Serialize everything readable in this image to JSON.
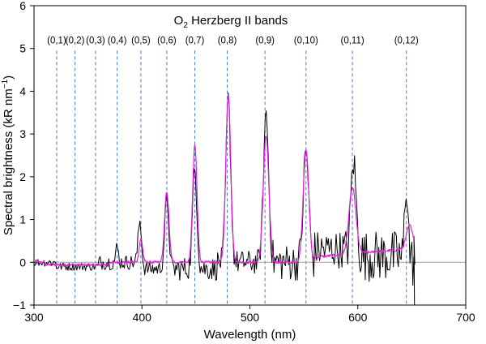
{
  "chart_data": {
    "type": "line",
    "title": "O",
    "title_sub": "2",
    "title_rest": " Herzberg II bands",
    "xlabel": "Wavelength (nm)",
    "ylabel": "Spectral brightness (kR nm",
    "ylabel_sup": "−1",
    "ylabel_close": ")",
    "xlim": [
      300,
      700
    ],
    "ylim": [
      -1,
      6
    ],
    "xticks": [
      "300",
      "400",
      "500",
      "600",
      "700"
    ],
    "yticks": [
      "−1",
      "0",
      "1",
      "2",
      "3",
      "4",
      "5",
      "6"
    ],
    "colors": {
      "observed": "#000000",
      "model": "#e020e0",
      "band_marker": "#4a7bd0",
      "zero_line": "#a0a0a0"
    },
    "bands": [
      {
        "label": "(0,1)",
        "x": 321
      },
      {
        "label": "(0,2)",
        "x": 338
      },
      {
        "label": "(0,3)",
        "x": 357
      },
      {
        "label": "(0,4)",
        "x": 377
      },
      {
        "label": "(0,5)",
        "x": 399
      },
      {
        "label": "(0,6)",
        "x": 423
      },
      {
        "label": "(0,7)",
        "x": 449
      },
      {
        "label": "(0,8)",
        "x": 479
      },
      {
        "label": "(0,9)",
        "x": 514
      },
      {
        "label": "(0,10)",
        "x": 552
      },
      {
        "label": "(0,11)",
        "x": 595
      },
      {
        "label": "(0,12)",
        "x": 645
      }
    ],
    "model_peaks": [
      {
        "x": 399,
        "h": 0.55,
        "w": 1.6
      },
      {
        "x": 423,
        "h": 1.65,
        "w": 2.0
      },
      {
        "x": 449,
        "h": 2.75,
        "w": 2.0
      },
      {
        "x": 480,
        "h": 3.9,
        "w": 2.3
      },
      {
        "x": 515,
        "h": 2.95,
        "w": 2.6
      },
      {
        "x": 552,
        "h": 2.65,
        "w": 2.6
      },
      {
        "x": 595,
        "h": 1.55,
        "w": 3.2
      },
      {
        "x": 648,
        "h": 0.55,
        "w": 3.0
      }
    ],
    "observed_peaks": [
      {
        "x": 377,
        "h": 0.35,
        "w": 1.2
      },
      {
        "x": 398,
        "h": 0.95,
        "w": 1.6
      },
      {
        "x": 423,
        "h": 1.6,
        "w": 1.9
      },
      {
        "x": 449,
        "h": 2.35,
        "w": 2.0
      },
      {
        "x": 480,
        "h": 3.8,
        "w": 2.2
      },
      {
        "x": 515,
        "h": 3.5,
        "w": 2.4
      },
      {
        "x": 552,
        "h": 2.6,
        "w": 2.5
      },
      {
        "x": 596,
        "h": 2.35,
        "w": 2.6
      },
      {
        "x": 645,
        "h": 1.9,
        "w": 1.6
      }
    ],
    "series": [
      {
        "key": "observed"
      },
      {
        "key": "model"
      }
    ]
  }
}
